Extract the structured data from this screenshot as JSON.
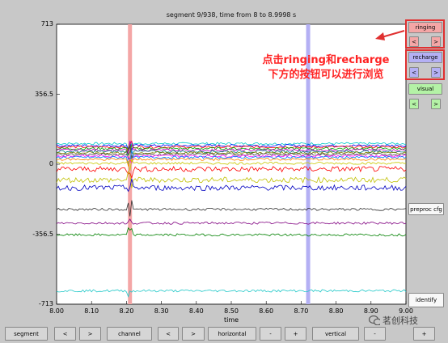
{
  "title": "segment 9/938, time from 8 to 8.9998 s",
  "annotation": {
    "text_line1": "点击ringing和recharge",
    "text_line2": "下方的按钮可以进行浏览"
  },
  "side_panel": {
    "ringing": {
      "label": "ringing",
      "prev": "<",
      "next": ">"
    },
    "recharge": {
      "label": "recharge",
      "prev": "<",
      "next": ">"
    },
    "visual": {
      "label": "visual",
      "prev": "<",
      "next": ">"
    },
    "preproc": {
      "label": "preproc cfg"
    },
    "identify": {
      "label": "identify"
    }
  },
  "bottom_bar": {
    "segment": "segment",
    "segment_prev": "<",
    "segment_next": ">",
    "channel": "channel",
    "channel_prev": "<",
    "channel_next": ">",
    "horizontal": "horizontal",
    "horizontal_minus": "-",
    "horizontal_plus": "+",
    "vertical": "vertical",
    "vertical_minus": "-",
    "vertical_plus": "+"
  },
  "watermark": "茗创科技",
  "colors": {
    "ringing": "#f4a6a6",
    "recharge": "#b4b0f4",
    "visual": "#b4f2a6",
    "annotation": "#ff2222"
  },
  "chart_data": {
    "type": "line",
    "title": "segment 9/938, time from 8 to 8.9998 s",
    "xlabel": "time",
    "ylabel": "",
    "xlim": [
      8.0,
      9.0
    ],
    "ylim": [
      -713,
      713
    ],
    "xticks": [
      "8.00",
      "8.10",
      "8.20",
      "8.30",
      "8.40",
      "8.50",
      "8.60",
      "8.70",
      "8.80",
      "8.90",
      "9.00"
    ],
    "yticks": [
      "713",
      "356.5",
      "0",
      "-356.5",
      "-713"
    ],
    "ringing_marker_x": 8.21,
    "recharge_marker_x": 8.72,
    "series_offsets": [
      105,
      95,
      88,
      80,
      72,
      65,
      58,
      50,
      42,
      35,
      25,
      5,
      -25,
      -80,
      -120,
      -230,
      -300,
      -360,
      -645
    ],
    "series_colors": [
      "#00c8c8",
      "#0000ff",
      "#ff0000",
      "#00a000",
      "#c000c0",
      "#008080",
      "#808000",
      "#404040",
      "#ff00ff",
      "#0080ff",
      "#ff8000",
      "#c8c800",
      "#ff0000",
      "#c0c000",
      "#0000c0",
      "#303030",
      "#800080",
      "#008000",
      "#20c8c8"
    ]
  }
}
